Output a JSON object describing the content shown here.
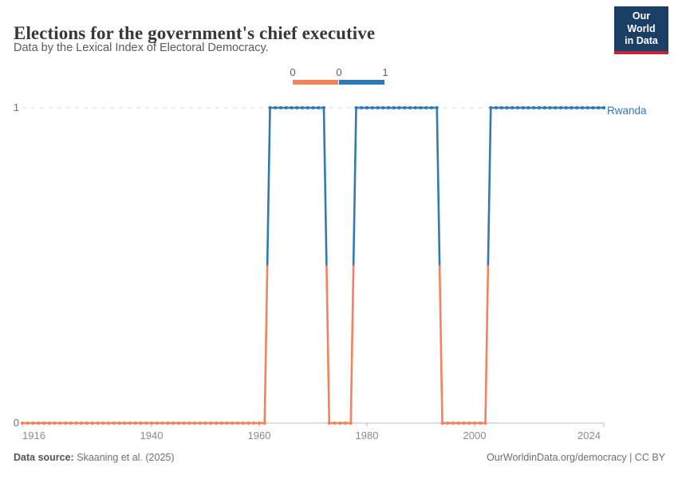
{
  "header": {
    "title": "Elections for the government's chief executive",
    "subtitle": "Data by the Lexical Index of Electoral Democracy.",
    "logo": {
      "line1": "Our World",
      "line2": "in Data",
      "bg_color": "#1a3e66",
      "accent_color": "#c52435"
    }
  },
  "legend": {
    "labels": [
      "0",
      "0",
      "1"
    ],
    "segments": [
      {
        "value": 0,
        "color": "#F2835B"
      },
      {
        "value": 1,
        "color": "#2F79B5"
      }
    ]
  },
  "chart_data": {
    "type": "line",
    "entity": "Rwanda",
    "title": "Elections for the government's chief executive",
    "x_start": 1916,
    "x_end": 2024,
    "ylim": [
      0,
      1
    ],
    "y_ticks": [
      0,
      1
    ],
    "x_ticks": [
      1916,
      1940,
      1960,
      1980,
      2000,
      2024
    ],
    "grid": "dashed line at y=1, solid axis at y=0",
    "colors": {
      "0": "#F2835B",
      "1": "#2F79B5"
    },
    "grid_color": "#d9d9d9",
    "axis_color": "#bcbcbc",
    "segments": [
      {
        "start_year": 1916,
        "end_year": 1961,
        "value": 0
      },
      {
        "start_year": 1962,
        "end_year": 1972,
        "value": 1
      },
      {
        "start_year": 1973,
        "end_year": 1977,
        "value": 0
      },
      {
        "start_year": 1978,
        "end_year": 1993,
        "value": 1
      },
      {
        "start_year": 1994,
        "end_year": 2002,
        "value": 0
      },
      {
        "start_year": 2003,
        "end_year": 2024,
        "value": 1
      }
    ],
    "values": [
      0,
      0,
      0,
      0,
      0,
      0,
      0,
      0,
      0,
      0,
      0,
      0,
      0,
      0,
      0,
      0,
      0,
      0,
      0,
      0,
      0,
      0,
      0,
      0,
      0,
      0,
      0,
      0,
      0,
      0,
      0,
      0,
      0,
      0,
      0,
      0,
      0,
      0,
      0,
      0,
      0,
      0,
      0,
      0,
      0,
      0,
      1,
      1,
      1,
      1,
      1,
      1,
      1,
      1,
      1,
      1,
      1,
      0,
      0,
      0,
      0,
      0,
      1,
      1,
      1,
      1,
      1,
      1,
      1,
      1,
      1,
      1,
      1,
      1,
      1,
      1,
      1,
      1,
      0,
      0,
      0,
      0,
      0,
      0,
      0,
      0,
      0,
      1,
      1,
      1,
      1,
      1,
      1,
      1,
      1,
      1,
      1,
      1,
      1,
      1,
      1,
      1,
      1,
      1,
      1,
      1,
      1,
      1,
      1
    ]
  },
  "footer": {
    "source_label": "Data source:",
    "source_value": " Skaaning et al. (2025)",
    "right_text": "OurWorldinData.org/democracy | CC BY"
  }
}
